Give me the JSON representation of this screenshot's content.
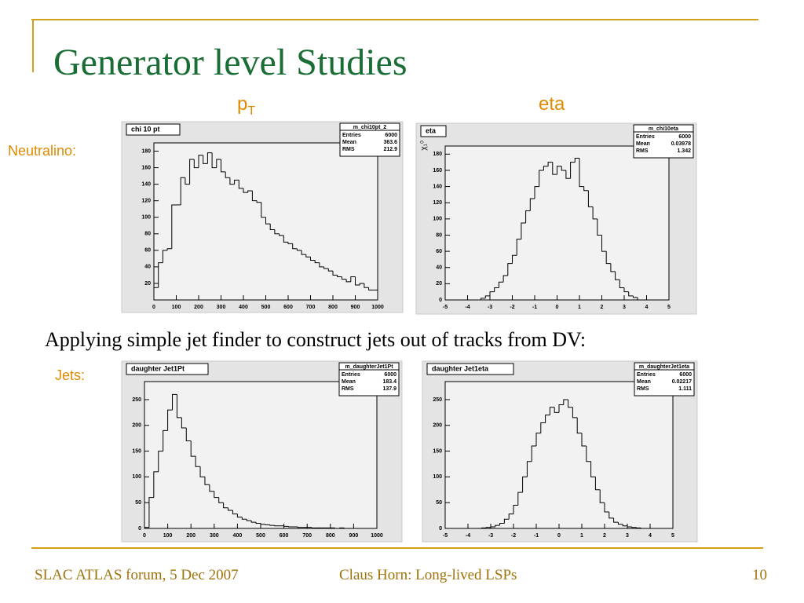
{
  "slide": {
    "title": "Generator level Studies",
    "pt_label": {
      "main": "p",
      "sub": "T"
    },
    "eta_label": "eta",
    "row_labels": [
      "Neutralino:",
      "Jets:"
    ],
    "caption": "Applying simple jet finder to construct jets out of tracks from DV:",
    "footer": {
      "left": "SLAC ATLAS forum, 5 Dec 2007",
      "center": "Claus Horn: Long-lived LSPs",
      "page": 10
    }
  },
  "chart_data": [
    {
      "type": "histogram",
      "title": "chi 10 pt",
      "color": "#000000",
      "bins": [
        0,
        20,
        40,
        60,
        80,
        100,
        120,
        140,
        160,
        180,
        200,
        220,
        240,
        260,
        280,
        300,
        320,
        340,
        360,
        380,
        400,
        420,
        440,
        460,
        480,
        500,
        520,
        540,
        560,
        580,
        600,
        620,
        640,
        660,
        680,
        700,
        720,
        740,
        760,
        780,
        800,
        820,
        840,
        860,
        880,
        900,
        920,
        940,
        960,
        980,
        1000
      ],
      "values": [
        15,
        45,
        60,
        62,
        115,
        115,
        148,
        140,
        170,
        160,
        175,
        165,
        178,
        160,
        170,
        155,
        148,
        140,
        145,
        135,
        130,
        132,
        120,
        118,
        100,
        92,
        85,
        80,
        78,
        70,
        68,
        62,
        60,
        55,
        52,
        48,
        45,
        40,
        38,
        35,
        30,
        28,
        25,
        22,
        28,
        18,
        20,
        15,
        12,
        12
      ],
      "xlim": [
        0,
        1000
      ],
      "xticks": [
        0,
        100,
        200,
        300,
        400,
        500,
        600,
        700,
        800,
        900,
        1000
      ],
      "ylim": [
        0,
        190
      ],
      "yticks": [
        20,
        40,
        60,
        80,
        100,
        120,
        140,
        160,
        180
      ],
      "stats": {
        "name": "m_chi10pt_2",
        "labels": [
          "Entries",
          "Mean",
          "RMS"
        ],
        "values": [
          6000,
          363.6,
          212.9
        ]
      }
    },
    {
      "type": "histogram",
      "title": "eta",
      "ylabel": "χ₁⁰",
      "color": "#000000",
      "bins": [
        -5,
        -4.8,
        -4.6,
        -4.4,
        -4.2,
        -4,
        -3.8,
        -3.6,
        -3.4,
        -3.2,
        -3,
        -2.8,
        -2.6,
        -2.4,
        -2.2,
        -2,
        -1.8,
        -1.6,
        -1.4,
        -1.2,
        -1,
        -0.8,
        -0.6,
        -0.4,
        -0.2,
        0,
        0.2,
        0.4,
        0.6,
        0.8,
        1,
        1.2,
        1.4,
        1.6,
        1.8,
        2,
        2.2,
        2.4,
        2.6,
        2.8,
        3,
        3.2,
        3.4,
        3.6,
        3.8,
        4,
        4.2,
        4.4,
        4.6,
        4.8,
        5
      ],
      "values": [
        0,
        0,
        0,
        0,
        0,
        0,
        0,
        0,
        2,
        5,
        10,
        15,
        22,
        30,
        45,
        55,
        75,
        95,
        110,
        125,
        140,
        160,
        165,
        170,
        155,
        165,
        160,
        150,
        170,
        175,
        140,
        135,
        115,
        100,
        80,
        60,
        45,
        35,
        25,
        15,
        10,
        5,
        3,
        0,
        0,
        0,
        0,
        0,
        0,
        0
      ],
      "xlim": [
        -5,
        5
      ],
      "xticks": [
        -5,
        -4,
        -3,
        -2,
        -1,
        0,
        1,
        2,
        3,
        4,
        5
      ],
      "ylim": [
        0,
        190
      ],
      "yticks": [
        0,
        20,
        40,
        60,
        80,
        100,
        120,
        140,
        160,
        180
      ],
      "stats": {
        "name": "m_chi10eta",
        "labels": [
          "Entries",
          "Mean",
          "RMS"
        ],
        "values": [
          6000,
          0.03978,
          1.342
        ]
      }
    },
    {
      "type": "histogram",
      "title": "daughter Jet1Pt",
      "color": "#000000",
      "bins": [
        0,
        20,
        40,
        60,
        80,
        100,
        120,
        140,
        160,
        180,
        200,
        220,
        240,
        260,
        280,
        300,
        320,
        340,
        360,
        380,
        400,
        420,
        440,
        460,
        480,
        500,
        520,
        540,
        560,
        580,
        600,
        620,
        640,
        660,
        680,
        700,
        720,
        740,
        760,
        780,
        800,
        820,
        840,
        860,
        880,
        900,
        920,
        940,
        960,
        980,
        1000
      ],
      "values": [
        2,
        60,
        110,
        150,
        190,
        230,
        260,
        215,
        195,
        170,
        140,
        120,
        100,
        85,
        72,
        60,
        50,
        40,
        35,
        28,
        22,
        18,
        15,
        12,
        10,
        8,
        7,
        6,
        5,
        5,
        4,
        3,
        3,
        2,
        2,
        2,
        1,
        1,
        1,
        1,
        1,
        0,
        1,
        0,
        0,
        0,
        0,
        0,
        0,
        0
      ],
      "xlim": [
        0,
        1000
      ],
      "xticks": [
        0,
        100,
        200,
        300,
        400,
        500,
        600,
        700,
        800,
        900,
        1000
      ],
      "ylim": [
        0,
        285
      ],
      "yticks": [
        0,
        50,
        100,
        150,
        200,
        250
      ],
      "stats": {
        "name": "m_daughterJet1Pt",
        "labels": [
          "Entries",
          "Mean",
          "RMS"
        ],
        "values": [
          6000,
          183.4,
          137.9
        ]
      }
    },
    {
      "type": "histogram",
      "title": "daughter Jet1eta",
      "color": "#000000",
      "bins": [
        -5,
        -4.8,
        -4.6,
        -4.4,
        -4.2,
        -4,
        -3.8,
        -3.6,
        -3.4,
        -3.2,
        -3,
        -2.8,
        -2.6,
        -2.4,
        -2.2,
        -2,
        -1.8,
        -1.6,
        -1.4,
        -1.2,
        -1,
        -0.8,
        -0.6,
        -0.4,
        -0.2,
        0,
        0.2,
        0.4,
        0.6,
        0.8,
        1,
        1.2,
        1.4,
        1.6,
        1.8,
        2,
        2.2,
        2.4,
        2.6,
        2.8,
        3,
        3.2,
        3.4,
        3.6,
        3.8,
        4,
        4.2,
        4.4,
        4.6,
        4.8,
        5
      ],
      "values": [
        0,
        0,
        0,
        0,
        0,
        0,
        0,
        0,
        1,
        2,
        3,
        6,
        10,
        18,
        28,
        45,
        70,
        100,
        130,
        160,
        185,
        205,
        220,
        235,
        225,
        240,
        250,
        235,
        215,
        185,
        160,
        130,
        100,
        75,
        50,
        32,
        20,
        12,
        8,
        5,
        3,
        2,
        1,
        0,
        0,
        0,
        0,
        0,
        0,
        0
      ],
      "xlim": [
        -5,
        5
      ],
      "xticks": [
        -5,
        -4,
        -3,
        -2,
        -1,
        0,
        1,
        2,
        3,
        4,
        5
      ],
      "ylim": [
        0,
        285
      ],
      "yticks": [
        0,
        50,
        100,
        150,
        200,
        250
      ],
      "stats": {
        "name": "m_daughterJet1eta",
        "labels": [
          "Entries",
          "Mean",
          "RMS"
        ],
        "values": [
          6000,
          0.02217,
          1.111
        ]
      }
    }
  ]
}
